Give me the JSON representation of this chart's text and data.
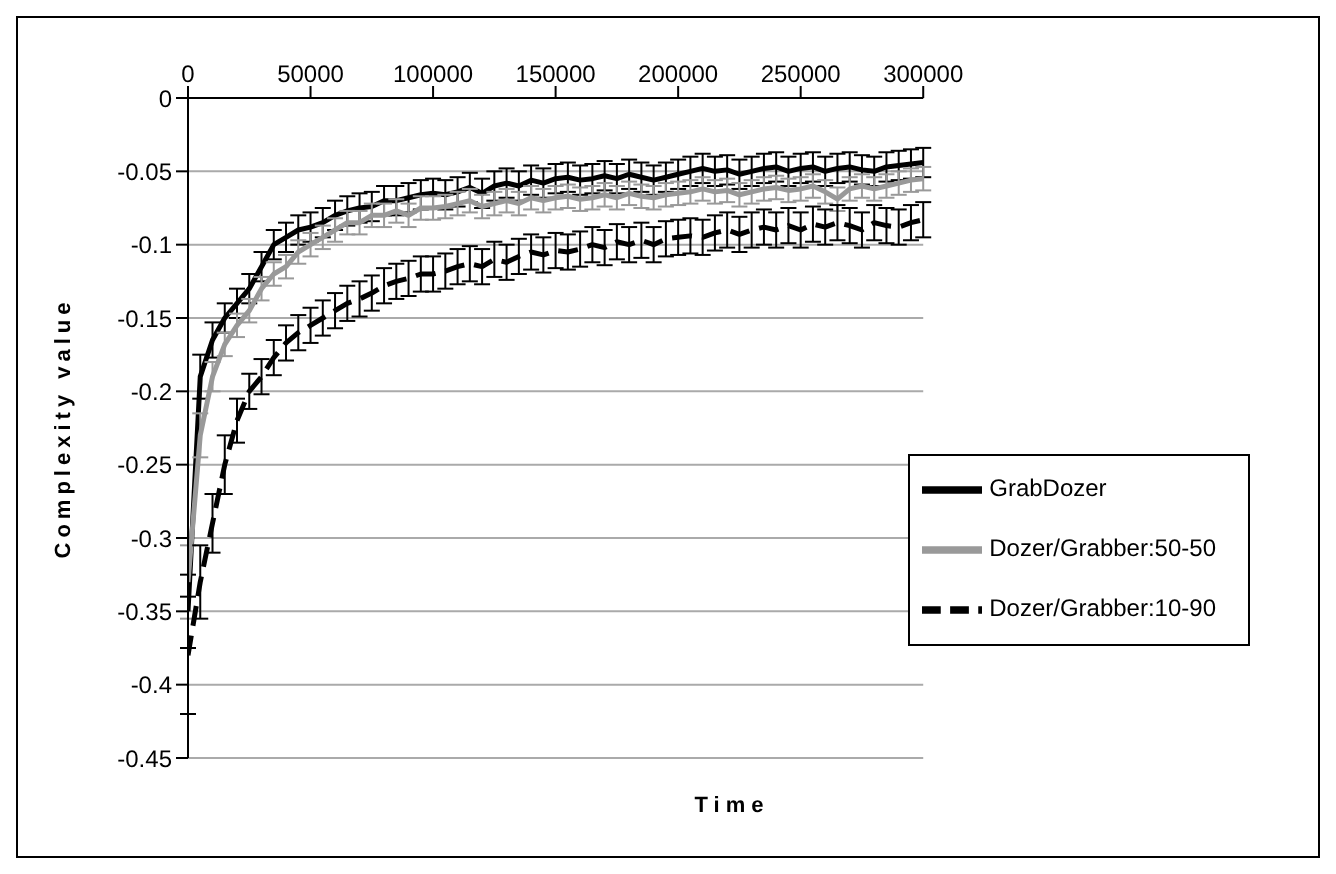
{
  "chart_data": {
    "type": "line",
    "xlabel": "Time",
    "ylabel": "Complexity value",
    "x": [
      0,
      5000,
      10000,
      15000,
      20000,
      25000,
      30000,
      35000,
      40000,
      45000,
      50000,
      55000,
      60000,
      65000,
      70000,
      75000,
      80000,
      85000,
      90000,
      95000,
      100000,
      105000,
      110000,
      115000,
      120000,
      125000,
      130000,
      135000,
      140000,
      145000,
      150000,
      155000,
      160000,
      165000,
      170000,
      175000,
      180000,
      185000,
      190000,
      195000,
      200000,
      205000,
      210000,
      215000,
      220000,
      225000,
      230000,
      235000,
      240000,
      245000,
      250000,
      255000,
      260000,
      265000,
      270000,
      275000,
      280000,
      285000,
      290000,
      295000,
      300000
    ],
    "series": [
      {
        "name": "GrabDozer",
        "color": "#000000",
        "line_style": "solid",
        "values": [
          -0.35,
          -0.19,
          -0.165,
          -0.15,
          -0.14,
          -0.13,
          -0.115,
          -0.1,
          -0.095,
          -0.09,
          -0.088,
          -0.085,
          -0.08,
          -0.077,
          -0.075,
          -0.074,
          -0.07,
          -0.07,
          -0.068,
          -0.066,
          -0.065,
          -0.066,
          -0.064,
          -0.061,
          -0.065,
          -0.06,
          -0.058,
          -0.06,
          -0.056,
          -0.058,
          -0.055,
          -0.054,
          -0.056,
          -0.055,
          -0.053,
          -0.055,
          -0.052,
          -0.054,
          -0.056,
          -0.054,
          -0.052,
          -0.05,
          -0.048,
          -0.05,
          -0.049,
          -0.052,
          -0.05,
          -0.048,
          -0.047,
          -0.05,
          -0.048,
          -0.047,
          -0.05,
          -0.048,
          -0.047,
          -0.049,
          -0.05,
          -0.047,
          -0.046,
          -0.045,
          -0.044
        ],
        "errors": [
          0.025,
          0.015,
          0.012,
          0.01,
          0.01,
          0.01,
          0.01,
          0.01,
          0.01,
          0.01,
          0.01,
          0.01,
          0.01,
          0.01,
          0.01,
          0.01,
          0.01,
          0.01,
          0.01,
          0.01,
          0.01,
          0.01,
          0.01,
          0.01,
          0.01,
          0.01,
          0.01,
          0.01,
          0.01,
          0.01,
          0.01,
          0.01,
          0.01,
          0.01,
          0.01,
          0.01,
          0.01,
          0.01,
          0.01,
          0.01,
          0.01,
          0.01,
          0.01,
          0.01,
          0.01,
          0.01,
          0.01,
          0.01,
          0.01,
          0.01,
          0.01,
          0.01,
          0.01,
          0.01,
          0.01,
          0.01,
          0.01,
          0.01,
          0.01,
          0.01,
          0.01
        ]
      },
      {
        "name": "Dozer/Grabber:50-50",
        "color": "#999999",
        "line_style": "solid",
        "values": [
          -0.33,
          -0.23,
          -0.19,
          -0.168,
          -0.155,
          -0.145,
          -0.13,
          -0.12,
          -0.115,
          -0.105,
          -0.1,
          -0.095,
          -0.09,
          -0.085,
          -0.085,
          -0.08,
          -0.08,
          -0.077,
          -0.08,
          -0.075,
          -0.075,
          -0.074,
          -0.072,
          -0.07,
          -0.074,
          -0.072,
          -0.07,
          -0.072,
          -0.068,
          -0.07,
          -0.068,
          -0.067,
          -0.069,
          -0.068,
          -0.066,
          -0.068,
          -0.065,
          -0.067,
          -0.068,
          -0.066,
          -0.065,
          -0.064,
          -0.062,
          -0.064,
          -0.063,
          -0.066,
          -0.064,
          -0.062,
          -0.061,
          -0.063,
          -0.062,
          -0.06,
          -0.064,
          -0.069,
          -0.062,
          -0.06,
          -0.062,
          -0.06,
          -0.058,
          -0.056,
          -0.055
        ],
        "errors": [
          0.025,
          0.015,
          0.01,
          0.008,
          0.008,
          0.008,
          0.008,
          0.008,
          0.008,
          0.008,
          0.008,
          0.008,
          0.008,
          0.008,
          0.008,
          0.008,
          0.008,
          0.008,
          0.008,
          0.008,
          0.008,
          0.008,
          0.008,
          0.008,
          0.008,
          0.008,
          0.008,
          0.008,
          0.008,
          0.008,
          0.008,
          0.008,
          0.008,
          0.008,
          0.008,
          0.008,
          0.008,
          0.008,
          0.008,
          0.008,
          0.008,
          0.008,
          0.008,
          0.008,
          0.008,
          0.008,
          0.008,
          0.008,
          0.008,
          0.008,
          0.008,
          0.008,
          0.008,
          0.008,
          0.008,
          0.008,
          0.008,
          0.008,
          0.008,
          0.008,
          0.008
        ]
      },
      {
        "name": "Dozer/Grabber:10-90",
        "color": "#000000",
        "line_style": "dashed",
        "values": [
          -0.38,
          -0.33,
          -0.29,
          -0.25,
          -0.22,
          -0.2,
          -0.19,
          -0.177,
          -0.167,
          -0.16,
          -0.155,
          -0.15,
          -0.145,
          -0.14,
          -0.137,
          -0.133,
          -0.128,
          -0.125,
          -0.123,
          -0.12,
          -0.12,
          -0.118,
          -0.115,
          -0.113,
          -0.115,
          -0.11,
          -0.112,
          -0.108,
          -0.105,
          -0.107,
          -0.104,
          -0.105,
          -0.103,
          -0.1,
          -0.102,
          -0.098,
          -0.1,
          -0.097,
          -0.1,
          -0.096,
          -0.095,
          -0.094,
          -0.095,
          -0.092,
          -0.09,
          -0.093,
          -0.09,
          -0.088,
          -0.09,
          -0.087,
          -0.09,
          -0.086,
          -0.088,
          -0.085,
          -0.087,
          -0.09,
          -0.085,
          -0.087,
          -0.088,
          -0.085,
          -0.083
        ],
        "errors": [
          0.04,
          0.025,
          0.02,
          0.02,
          0.015,
          0.012,
          0.012,
          0.012,
          0.012,
          0.012,
          0.012,
          0.012,
          0.012,
          0.012,
          0.012,
          0.012,
          0.012,
          0.012,
          0.012,
          0.012,
          0.012,
          0.012,
          0.012,
          0.012,
          0.012,
          0.012,
          0.012,
          0.012,
          0.012,
          0.012,
          0.012,
          0.012,
          0.012,
          0.012,
          0.012,
          0.012,
          0.012,
          0.012,
          0.012,
          0.012,
          0.012,
          0.012,
          0.012,
          0.012,
          0.012,
          0.012,
          0.012,
          0.012,
          0.012,
          0.012,
          0.012,
          0.012,
          0.012,
          0.012,
          0.012,
          0.012,
          0.012,
          0.012,
          0.012,
          0.012,
          0.012
        ]
      }
    ],
    "xlim": [
      0,
      300000
    ],
    "xticks": [
      0,
      50000,
      100000,
      150000,
      200000,
      250000,
      300000
    ],
    "ylim": [
      -0.45,
      0
    ],
    "yticks": [
      -0.45,
      -0.4,
      -0.35,
      -0.3,
      -0.25,
      -0.2,
      -0.15,
      -0.1,
      -0.05,
      0
    ],
    "grid": "y",
    "legend": "bottom right",
    "marker": "none"
  }
}
